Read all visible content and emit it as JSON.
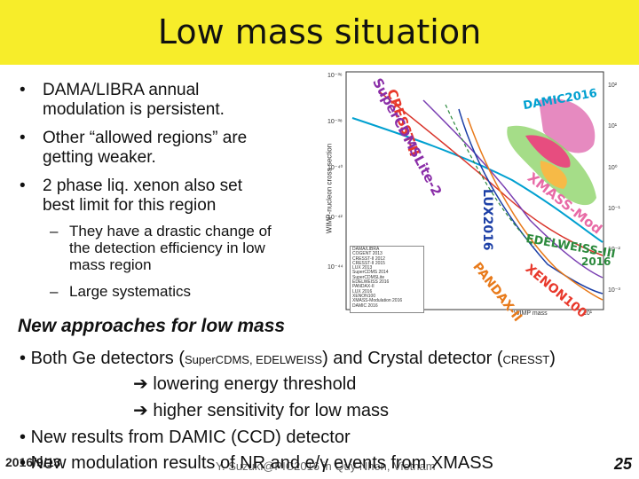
{
  "slide": {
    "title": "Low mass situation",
    "bullets": [
      {
        "line1": "DAMA/LIBRA annual",
        "line2": "modulation is persistent."
      },
      {
        "line1": "Other “allowed regions” are",
        "line2": "getting weaker."
      },
      {
        "line1": "2 phase liq. xenon also set",
        "line2": "best limit for this region"
      }
    ],
    "sub_bullets": [
      {
        "line1": "They have a drastic change of",
        "line2": "the detection efficiency in low",
        "line3": "mass region"
      },
      {
        "line1": "Large systematics"
      }
    ],
    "new_approaches_heading": "New approaches for low mass",
    "b2": {
      "line1_a": "Both Ge detectors (",
      "line1_small_a": "SuperCDMS, EDELWEISS",
      "line1_b": ") and Crystal detector (",
      "line1_small_b": "CRESST",
      "line1_c": ")",
      "arrow1": "lowering energy threshold",
      "arrow2": "higher sensitivity for low mass",
      "damic": "New results from DAMIC (CCD) detector",
      "xmass": "New modulation results of NR and e/γ events from XMASS"
    },
    "footer": {
      "date": "2016/9/13",
      "center": "Y. Suzuki@PIC2016 in Quy Nhon, Vietnam",
      "page": "25"
    }
  },
  "plot": {
    "ylabel": "WIMP-nucleon cross section",
    "xlabel": "WIMP mass",
    "y_ticks": [
      "10⁻³⁶",
      "10⁻³⁸",
      "10⁻⁴⁰",
      "10⁻⁴²",
      "10⁻⁴⁴"
    ],
    "y2_ticks": [
      "10²",
      "10¹",
      "10⁰",
      "10⁻¹",
      "10⁻²",
      "10⁻³"
    ],
    "x_tick": "10¹",
    "legend": [
      "DAMA/LIBRA",
      "COGENT 2013",
      "CRESST-II 2012",
      "CRESST-II 2015",
      "LUX 2013",
      "SuperCDMS 2014",
      "SuperCDMSLite",
      "EDELWEISS 2016",
      "PANDAX-II",
      "LUX 2016",
      "XENON100",
      "XMASS-Modulation 2016",
      "DAMIC 2016"
    ],
    "labels": {
      "cresst": "CRESST-II",
      "supercdms": "SuperCDMSLite-2",
      "damic": "DAMIC2016",
      "xmass": "XMASS-Mod",
      "lux": "LUX2016",
      "edelweiss": "EDELWEISS-III",
      "edelweiss_year": "2016",
      "pandax": "PANDAX-II",
      "xenon": "XENON100"
    }
  }
}
